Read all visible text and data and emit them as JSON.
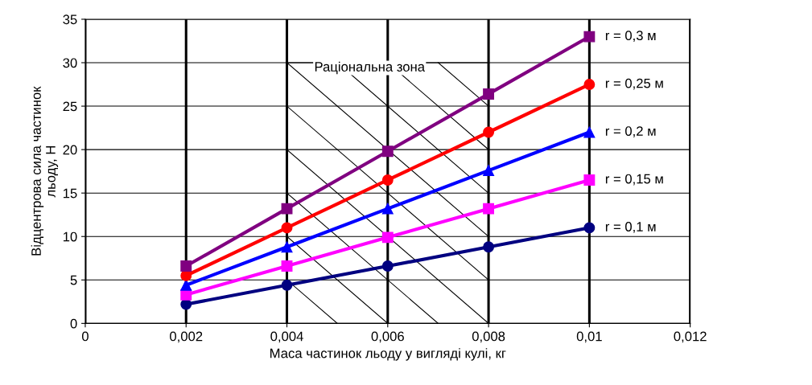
{
  "chart_data": {
    "type": "line",
    "xlabel": "Маса частинок льоду у вигляді кулі, кг",
    "ylabel": "Відцентрова сила частинок\nльоду, Н",
    "x": [
      0.002,
      0.004,
      0.006,
      0.008,
      0.01
    ],
    "series": [
      {
        "name": "r = 0,1 м",
        "color": "#000080",
        "marker": "circle",
        "values": [
          2.2,
          4.4,
          6.6,
          8.8,
          11
        ]
      },
      {
        "name": "r = 0,15 м",
        "color": "#ff00ff",
        "marker": "square",
        "values": [
          3.3,
          6.6,
          9.9,
          13.2,
          16.5
        ]
      },
      {
        "name": "r = 0,2 м",
        "color": "#0000ff",
        "marker": "triangle",
        "values": [
          4.4,
          8.8,
          13.2,
          17.6,
          22
        ]
      },
      {
        "name": "r = 0,25 м",
        "color": "#ff0000",
        "marker": "circle",
        "values": [
          5.5,
          11,
          16.5,
          22,
          27.5
        ]
      },
      {
        "name": "r = 0,3 м",
        "color": "#800080",
        "marker": "square",
        "values": [
          6.6,
          13.2,
          19.8,
          26.4,
          33
        ]
      }
    ],
    "annotations": [
      "Раціональна зона"
    ],
    "xlim": [
      0,
      0.012
    ],
    "xticks": [
      0,
      {
        "value": 0.002,
        "label": "0,002"
      },
      {
        "value": 0.004,
        "label": "0,004"
      },
      {
        "value": 0.006,
        "label": "0,006"
      },
      {
        "value": 0.008,
        "label": "0,008"
      },
      {
        "value": 0.01,
        "label": "0,01"
      },
      {
        "value": 0.012,
        "label": "0,012"
      }
    ],
    "ylim": [
      0,
      35
    ],
    "yticks": [
      0,
      5,
      10,
      15,
      20,
      25,
      30,
      35
    ],
    "grid": true,
    "legend": false,
    "line_style": "solid"
  }
}
